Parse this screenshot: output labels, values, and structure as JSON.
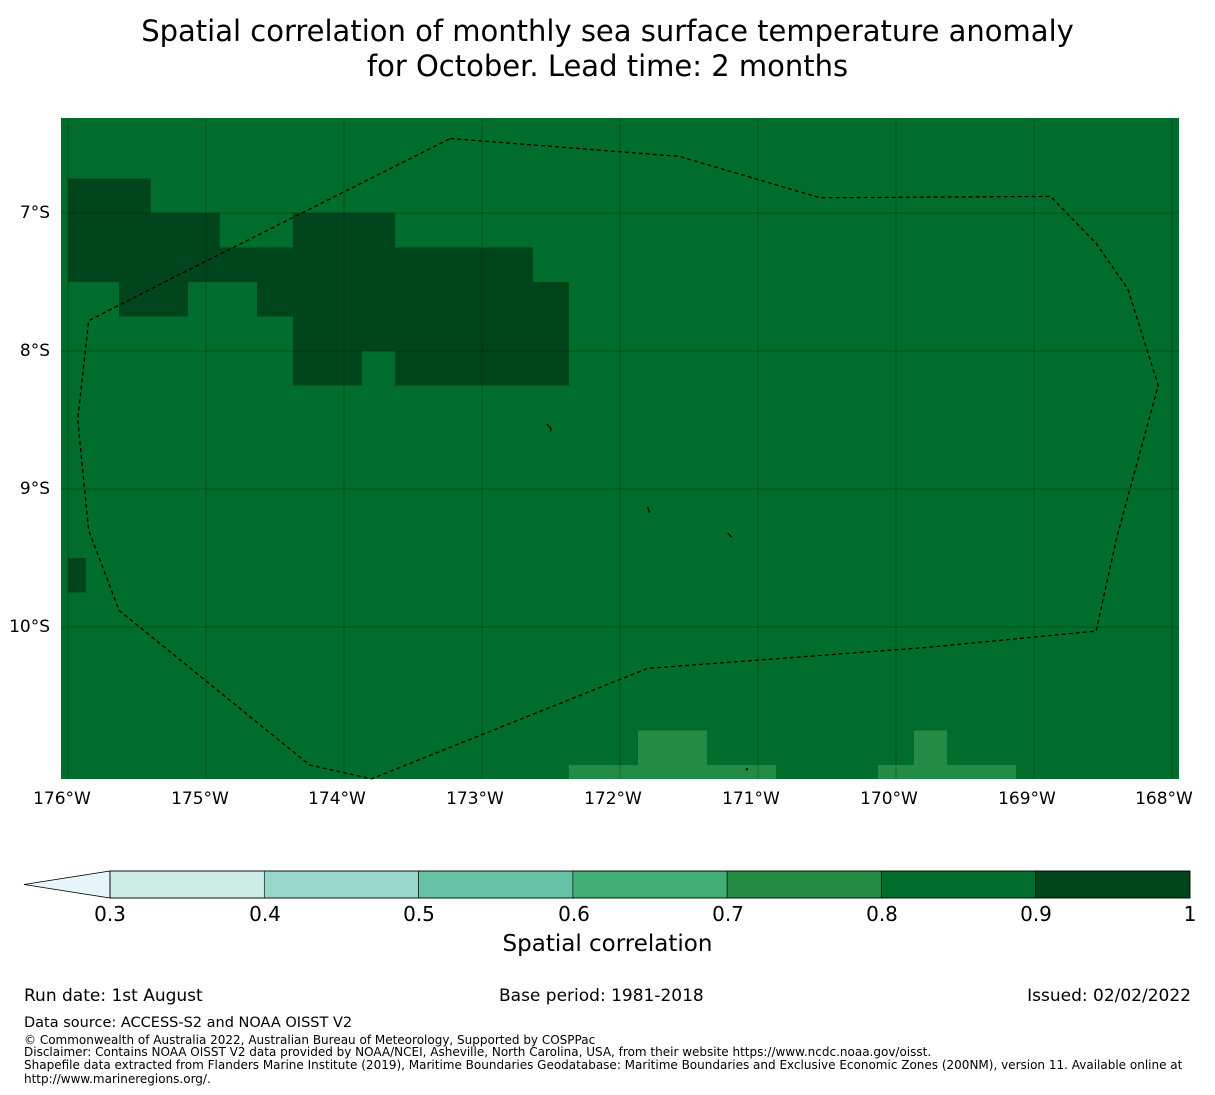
{
  "title": {
    "line1": "Spatial correlation of monthly sea surface temperature anomaly",
    "line2": "for October. Lead time: 2 months"
  },
  "map": {
    "lat_labels": [
      "7°S",
      "8°S",
      "9°S",
      "10°S"
    ],
    "lon_labels": [
      "176°W",
      "175°W",
      "174°W",
      "173°W",
      "172°W",
      "171°W",
      "170°W",
      "169°W",
      "168°W"
    ],
    "lon_range": [
      -176,
      -168
    ],
    "lat_range": [
      -11.1,
      -6.3
    ],
    "background_value": 0.85,
    "cells": [
      {
        "lon": [
          -176.0,
          -175.4
        ],
        "lat": [
          -7.0,
          -6.75
        ],
        "value": 0.95
      },
      {
        "lon": [
          -176.0,
          -174.9
        ],
        "lat": [
          -7.25,
          -7.0
        ],
        "value": 0.95
      },
      {
        "lon": [
          -174.37,
          -173.63
        ],
        "lat": [
          -7.25,
          -7.0
        ],
        "value": 0.95
      },
      {
        "lon": [
          -176.0,
          -173.63
        ],
        "lat": [
          -7.5,
          -7.25
        ],
        "value": 0.95
      },
      {
        "lon": [
          -173.63,
          -172.63
        ],
        "lat": [
          -7.5,
          -7.25
        ],
        "value": 0.95
      },
      {
        "lon": [
          -175.63,
          -175.13
        ],
        "lat": [
          -7.75,
          -7.5
        ],
        "value": 0.95
      },
      {
        "lon": [
          -174.63,
          -172.37
        ],
        "lat": [
          -7.75,
          -7.5
        ],
        "value": 0.95
      },
      {
        "lon": [
          -174.37,
          -172.37
        ],
        "lat": [
          -8.0,
          -7.75
        ],
        "value": 0.95
      },
      {
        "lon": [
          -174.37,
          -173.87
        ],
        "lat": [
          -8.25,
          -8.0
        ],
        "value": 0.95
      },
      {
        "lon": [
          -173.63,
          -172.37
        ],
        "lat": [
          -8.25,
          -8.0
        ],
        "value": 0.95
      },
      {
        "lon": [
          -176.0,
          -175.87
        ],
        "lat": [
          -9.75,
          -9.5
        ],
        "value": 0.95
      },
      {
        "lon": [
          -171.87,
          -171.37
        ],
        "lat": [
          -11.0,
          -10.75
        ],
        "value": 0.75
      },
      {
        "lon": [
          -172.37,
          -170.87
        ],
        "lat": [
          -11.1,
          -11.0
        ],
        "value": 0.75
      },
      {
        "lon": [
          -169.87,
          -169.63
        ],
        "lat": [
          -11.0,
          -10.75
        ],
        "value": 0.75
      },
      {
        "lon": [
          -170.13,
          -169.13
        ],
        "lat": [
          -11.1,
          -11.0
        ],
        "value": 0.75
      }
    ],
    "eez_boundary": [
      [
        -173.23,
        -6.46
      ],
      [
        -171.57,
        -6.59
      ],
      [
        -170.55,
        -6.89
      ],
      [
        -168.88,
        -6.88
      ],
      [
        -168.55,
        -7.22
      ],
      [
        -168.32,
        -7.55
      ],
      [
        -168.1,
        -8.25
      ],
      [
        -168.4,
        -9.35
      ],
      [
        -168.55,
        -10.03
      ],
      [
        -169.8,
        -10.15
      ],
      [
        -171.8,
        -10.3
      ],
      [
        -173.8,
        -11.1
      ],
      [
        -174.25,
        -11.0
      ],
      [
        -175.63,
        -9.88
      ],
      [
        -175.85,
        -9.3
      ],
      [
        -175.93,
        -8.5
      ],
      [
        -175.85,
        -7.78
      ],
      [
        -175.3,
        -7.5
      ],
      [
        -173.23,
        -6.46
      ]
    ]
  },
  "colorbar": {
    "ticks": [
      "0.3",
      "0.4",
      "0.5",
      "0.6",
      "0.7",
      "0.8",
      "0.9",
      "1"
    ],
    "colors": [
      "#cdece6",
      "#99d8c9",
      "#66c2a4",
      "#41ae76",
      "#238b45",
      "#006d2c",
      "#00441b"
    ],
    "extend_color": "#e5f5f9",
    "label": "Spatial correlation"
  },
  "footer": {
    "run_date": "Run date: 1st August",
    "base_period": "Base period: 1981-2018",
    "issued": "Issued: 02/02/2022",
    "data_source": "Data source: ACCESS-S2 and NOAA OISST V2",
    "copyright": "© Commonwealth of Australia 2022, Australian Bureau of Meteorology, Supported by COSPPac",
    "disclaimer": "Disclaimer: Contains NOAA OISST V2 data provided by NOAA/NCEI, Asheville, North Carolina, USA, from their website https://www.ncdc.noaa.gov/oisst.",
    "shapefile_line1": "Shapefile data extracted from Flanders Marine Institute (2019), Maritime Boundaries Geodatabase: Maritime Boundaries and Exclusive Economic Zones (200NM), version 11. Available online at",
    "shapefile_line2": "http://www.marineregions.org/."
  }
}
